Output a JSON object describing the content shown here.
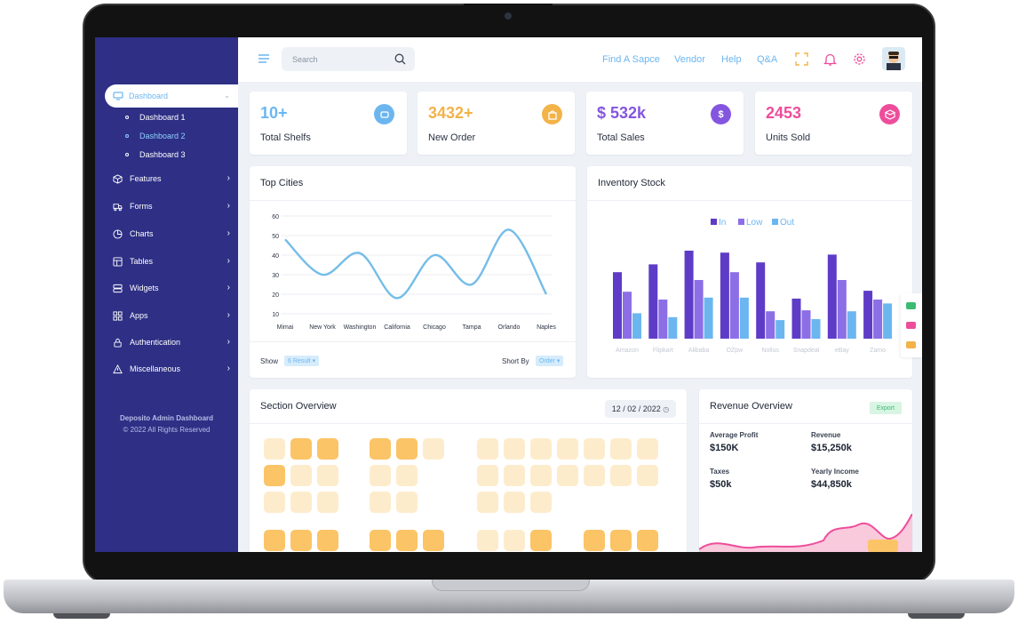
{
  "header": {
    "search_placeholder": "Search",
    "links": [
      "Find A Sapce",
      "Vendor",
      "Help",
      "Q&A"
    ]
  },
  "sidebar": {
    "active_item": "Dashboard",
    "submenu": [
      {
        "label": "Dashboard 1",
        "active": false
      },
      {
        "label": "Dashboard 2",
        "active": true
      },
      {
        "label": "Dashboard 3",
        "active": false
      }
    ],
    "items": [
      "Features",
      "Forms",
      "Charts",
      "Tables",
      "Widgets",
      "Apps",
      "Authentication",
      "Miscellaneous"
    ],
    "footer_title": "Deposito Admin Dashboard",
    "footer_copyright": "© 2022 All Rights Reserved"
  },
  "stats": [
    {
      "value": "10+",
      "label": "Total Shelfs",
      "color": "#6cb6f0"
    },
    {
      "value": "3432+",
      "label": "New Order",
      "color": "#f2b348"
    },
    {
      "value": "$ 532k",
      "label": "Total Sales",
      "color": "#8456e0"
    },
    {
      "value": "2453",
      "label": "Units Sold",
      "color": "#ee4d9b"
    }
  ],
  "top_cities": {
    "title": "Top Cities",
    "show_label": "Show",
    "show_value": "6 Result",
    "sort_label": "Short By",
    "sort_value": "Order"
  },
  "inventory": {
    "title": "Inventory Stock"
  },
  "section_overview": {
    "title": "Section Overview",
    "date": "12 / 02 / 2022"
  },
  "revenue": {
    "title": "Revenue Overview",
    "export_label": "Export",
    "metrics": [
      {
        "label": "Average Profit",
        "value": "$150K"
      },
      {
        "label": "Revenue",
        "value": "$15,250k"
      },
      {
        "label": "Taxes",
        "value": "$50k"
      },
      {
        "label": "Yearly Income",
        "value": "$44,850k"
      }
    ]
  },
  "chart_data": [
    {
      "type": "line",
      "title": "Top Cities",
      "categories": [
        "Mimai",
        "New York",
        "Washington",
        "California",
        "Chicago",
        "Tampa",
        "Orlando",
        "Naples"
      ],
      "y_ticks": [
        60,
        50,
        40,
        30,
        20,
        10
      ],
      "ylim": [
        10,
        60
      ],
      "series": [
        {
          "values": [
            48,
            30,
            41,
            18,
            40,
            25,
            53,
            20
          ]
        }
      ],
      "line_color": "#74bde8",
      "grid": true
    },
    {
      "type": "bar",
      "title": "Inventory Stock",
      "categories": [
        "Amazon",
        "Flipkart",
        "Alibaba",
        "OZpw",
        "Nollus",
        "Snapdeal",
        "eBay",
        "Zamo"
      ],
      "series": [
        {
          "name": "In",
          "color": "#5e3cc7",
          "values": [
            68,
            76,
            90,
            88,
            78,
            41,
            86,
            49
          ]
        },
        {
          "name": "Low",
          "color": "#8c6ee6",
          "values": [
            48,
            40,
            60,
            68,
            28,
            29,
            60,
            40
          ]
        },
        {
          "name": "Out",
          "color": "#6cb6f0",
          "values": [
            26,
            22,
            42,
            42,
            19,
            20,
            28,
            36
          ]
        }
      ],
      "ylim": [
        0,
        100
      ],
      "legend": "top-center"
    }
  ]
}
